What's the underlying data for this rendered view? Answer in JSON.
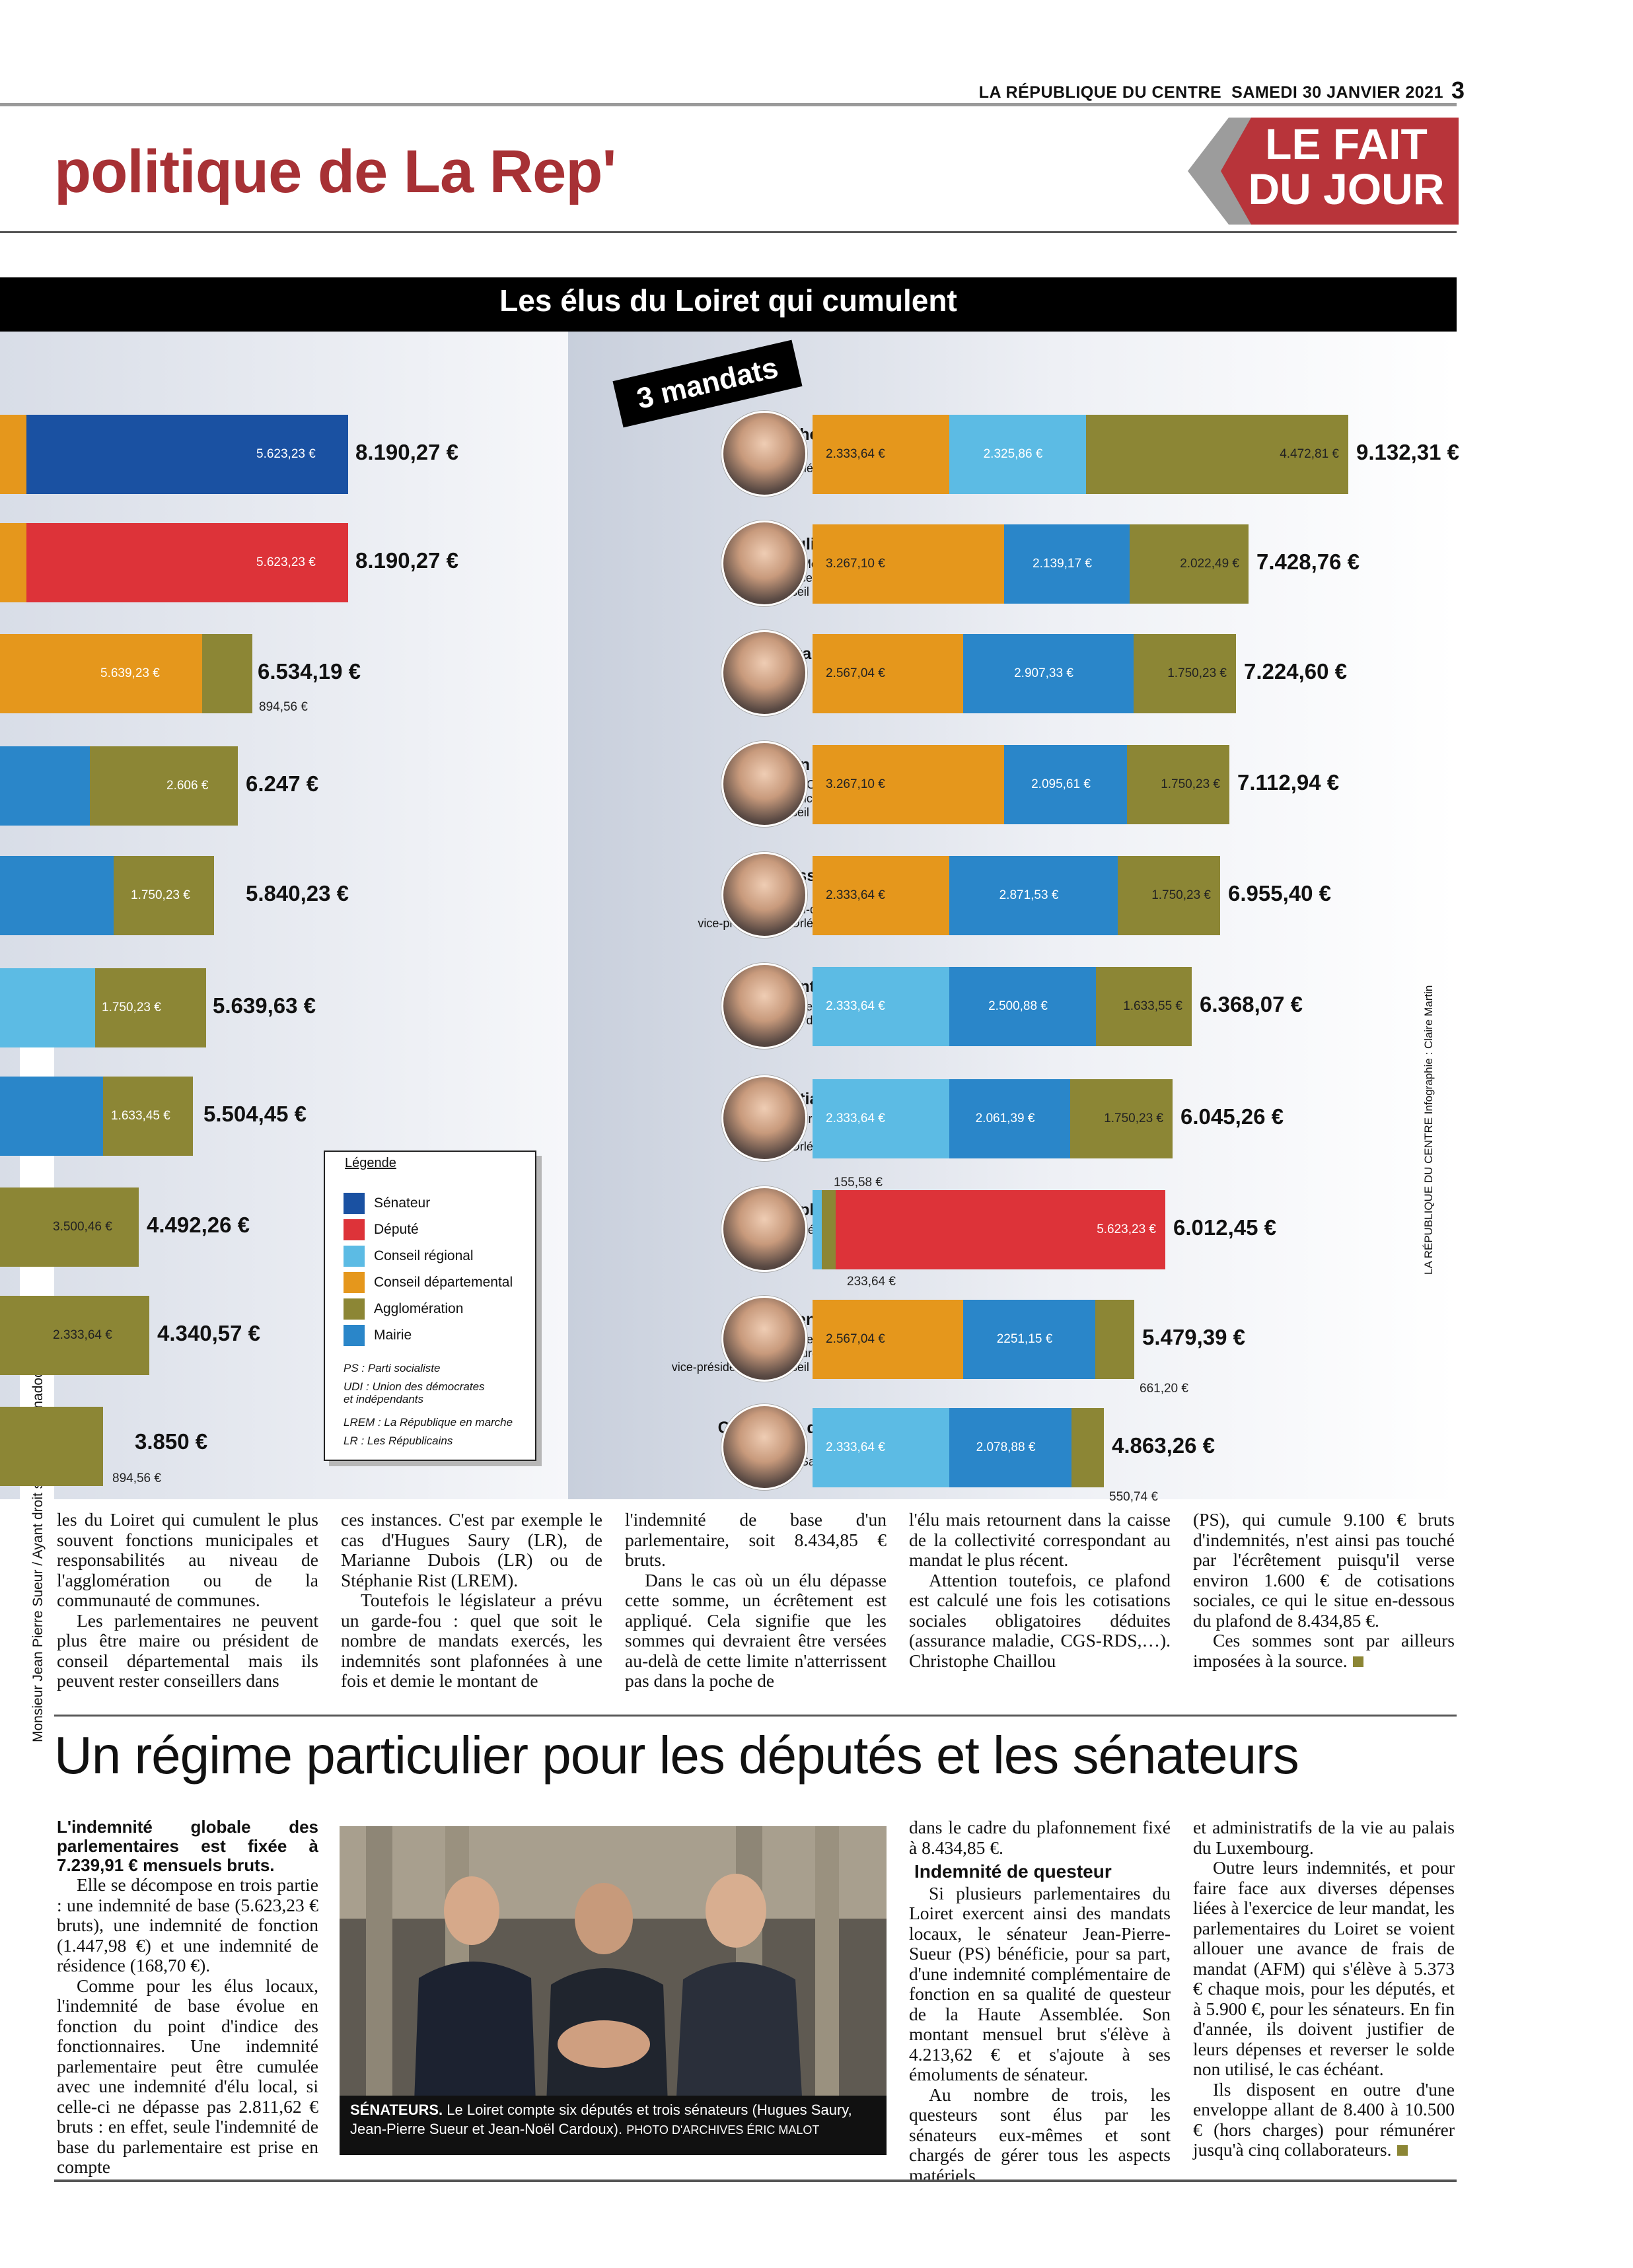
{
  "header": {
    "publication": "LA RÉPUBLIQUE DU CENTRE",
    "date": "SAMEDI 30 JANVIER 2021",
    "page_number": "3",
    "section_title": "politique de La Rep'",
    "fait_du_jour": "LE FAIT\nDU JOUR"
  },
  "infographic": {
    "title": "Les élus du Loiret qui cumulent",
    "badge": "3 mandats",
    "left_rows": [
      {
        "seg_label": "5.623,23 €",
        "total": "8.190,27 €",
        "extra": ""
      },
      {
        "seg_label": "5.623,23 €",
        "total": "8.190,27 €",
        "extra": ""
      },
      {
        "seg_label": "5.639,23 €",
        "total": "6.534,19 €",
        "extra": "894,56 €"
      },
      {
        "seg_label": "2.606 €",
        "total": "6.247 €",
        "extra": ""
      },
      {
        "seg_label": "1.750,23 €",
        "total": "5.840,23 €",
        "extra": ""
      },
      {
        "seg_label": "1.750,23 €",
        "total": "5.639,63 €",
        "extra": ""
      },
      {
        "seg_label": "1.633,45 €",
        "total": "5.504,45 €",
        "extra": ""
      },
      {
        "seg_label": "3.500,46 €",
        "total": "4.492,26 €",
        "extra": ""
      },
      {
        "seg_label": "2.333,64 €",
        "total": "4.340,57 €",
        "extra": ""
      },
      {
        "seg_label": "",
        "total": "3.850 €",
        "extra": "894,56 €"
      }
    ],
    "right_rows": [
      {
        "name": "Christophe Chaillou",
        "role": "Président\nd'Orléans métropole\n(PS)",
        "segments": [
          {
            "cat": "cd",
            "label": "2.333,64 €"
          },
          {
            "cat": "reg",
            "label": "2.325,86 €"
          },
          {
            "cat": "agg",
            "label": "4.472,81 €"
          }
        ],
        "total": "9.132,31 €",
        "extra": ""
      },
      {
        "name": "Pauline Martin",
        "role": "Maire de Meung-sur-Loire\n(Droite), vice-présidente du\nconseil départemental",
        "segments": [
          {
            "cat": "cd",
            "label": "3.267,10 €"
          },
          {
            "cat": "mai",
            "label": "2.139,17 €"
          },
          {
            "cat": "agg",
            "label": "2.022,49 €"
          }
        ],
        "total": "7.428,76 €",
        "extra": ""
      },
      {
        "name": "Gérard Dupaty",
        "role": "Maire d'Amilly\n(Droite)",
        "segments": [
          {
            "cat": "cd",
            "label": "2.567,04 €"
          },
          {
            "cat": "mai",
            "label": "2.907,33 €"
          },
          {
            "cat": "agg",
            "label": "1.750,23 €"
          }
        ],
        "total": "7.224,60 €",
        "extra": ""
      },
      {
        "name": "Alain Touchard",
        "role": "Maire d'Ormes (Droite),\nvice-président du\nconseil départemental",
        "segments": [
          {
            "cat": "cd",
            "label": "3.267,10 €"
          },
          {
            "cat": "mai",
            "label": "2.095,61 €"
          },
          {
            "cat": "agg",
            "label": "1.750,23 €"
          }
        ],
        "total": "7.112,94 €",
        "extra": ""
      },
      {
        "name": "Vanessa Slimani",
        "role": "Maire de\nSaint-Jean-de-Braye (PS),\nvice-présidente d'Orléans Métropole",
        "segments": [
          {
            "cat": "cd",
            "label": "2.333,64 €"
          },
          {
            "cat": "mai",
            "label": "2.871,53 €"
          },
          {
            "cat": "agg",
            "label": "1.750,23 €"
          }
        ],
        "total": "6.955,40 €",
        "extra": ""
      },
      {
        "name": "Florent Montillot",
        "role": "Premier maire-adjoint\nd'Orléans (UDI)",
        "segments": [
          {
            "cat": "reg",
            "label": "2.333,64 €"
          },
          {
            "cat": "mai",
            "label": "2.500,88 €"
          },
          {
            "cat": "agg",
            "label": "1.633,55 €"
          }
        ],
        "total": "6.368,07 €",
        "extra": ""
      },
      {
        "name": "Christian Dumas",
        "role": "Maire d'Ingré (PS),\nvice-président\nd'Orléans Métropole",
        "segments": [
          {
            "cat": "reg",
            "label": "2.333,64 €"
          },
          {
            "cat": "mai",
            "label": "2.061,39 €"
          },
          {
            "cat": "agg",
            "label": "1.750,23 €"
          }
        ],
        "total": "6.045,26 €",
        "extra": ""
      },
      {
        "name": "Stéphanie Rist",
        "role": "Députée (LREM)",
        "segments": [
          {
            "cat": "reg",
            "label": ""
          },
          {
            "cat": "agg",
            "label": ""
          },
          {
            "cat": "dep",
            "label": "5.623,23 €"
          }
        ],
        "total": "6.012,45 €",
        "extra": "155,58 €",
        "extra2": "233,64 €"
      },
      {
        "name": "Florence Galzin",
        "role": "Maire de Châteauneuf-\nsur-Loire (Droite),\nvice-présidente du conseil départemental",
        "segments": [
          {
            "cat": "cd",
            "label": "2.567,04 €"
          },
          {
            "cat": "mai",
            "label": "2251,15 €"
          },
          {
            "cat": "agg",
            "label": ""
          }
        ],
        "total": "5.479,39 €",
        "extra": "661,20 €"
      },
      {
        "name": "Constance de Pélichy",
        "role": "Maire de\nLa Ferté-Saint-Aubin (LR)",
        "segments": [
          {
            "cat": "reg",
            "label": "2.333,64 €"
          },
          {
            "cat": "mai",
            "label": "2.078,88 €"
          },
          {
            "cat": "agg",
            "label": ""
          }
        ],
        "total": "4.863,26 €",
        "extra": "550,74 €"
      }
    ],
    "legend": {
      "title": "Légende",
      "items": [
        {
          "label": "Sénateur",
          "color": "#1a51a2"
        },
        {
          "label": "Député",
          "color": "#dd3339"
        },
        {
          "label": "Conseil régional",
          "color": "#5cbbe4"
        },
        {
          "label": "Conseil départemental",
          "color": "#e5971c"
        },
        {
          "label": "Agglomération",
          "color": "#8c8635"
        },
        {
          "label": "Mairie",
          "color": "#2a86c9"
        }
      ],
      "notes": [
        "PS : Parti socialiste",
        "UDI : Union des démocrates\n        et indépendants",
        "LREM : La République en marche",
        "LR : Les Républicains"
      ]
    },
    "credit_vertical": "LA RÉPUBLIQUE DU CENTRE  Infographie : Claire Martin",
    "colors": {
      "sen": "#1a51a2",
      "dep": "#dd3339",
      "reg": "#5cbbe4",
      "cd": "#e5971c",
      "agg": "#8c8635",
      "mai": "#2a86c9"
    }
  },
  "side_credit": "Monsieur Jean Pierre Sueur / Ayant droit sueur.jp@wanadoo.fr",
  "article1": {
    "col1": [
      "les du Loiret qui cumulent le plus souvent fonctions municipales et responsabilités au niveau de l'agglomération ou de la communauté de communes.",
      "Les parlementaires ne peuvent plus être maire ou président de conseil départemental mais ils peuvent rester conseillers dans"
    ],
    "col2": [
      "ces instances. C'est par exemple le cas d'Hugues Saury (LR), de Marianne Dubois (LR) ou de Stéphanie Rist (LREM).",
      "Toutefois le législateur a prévu un garde-fou : quel que soit le nombre de mandats exercés, les indemnités sont plafonnées à une fois et demie le montant de"
    ],
    "col3": [
      "l'indemnité de base d'un parlementaire, soit 8.434,85 € bruts.",
      "Dans le cas où un élu dépasse cette somme, un écrêtement est appliqué. Cela signifie que les sommes qui devraient être versées au-delà de cette limite n'atterrissent pas dans la poche de"
    ],
    "col4": [
      "l'élu mais retournent dans la caisse de la collectivité correspondant au mandat le plus récent.",
      "Attention toutefois, ce plafond est calculé une fois les cotisations sociales obligatoires déduites (assurance maladie, CGS-RDS,…). Christophe Chaillou"
    ],
    "col5": [
      "(PS), qui cumule 9.100 € bruts d'indemnités, n'est ainsi pas touché par l'écrêtement puisqu'il verse environ 1.600 € de cotisations sociales, ce qui le situe en-dessous du plafond de 8.434,85 €.",
      "Ces sommes sont par ailleurs imposées à la source."
    ]
  },
  "article2": {
    "headline": "Un régime particulier pour les députés et les sénateurs",
    "lead": "L'indemnité globale des parlementaires est fixée à 7.239,91 € mensuels bruts.",
    "col1": [
      "Elle se décompose en trois partie : une indemnité de base (5.623,23 € bruts), une indemnité de fonction (1.447,98 €) et une indemnité de résidence (168,70 €).",
      "Comme pour les élus locaux, l'indemnité de base évolue en fonction du point d'indice des fonctionnaires. Une indemnité parlementaire peut être cumulée avec une indemnité d'élu local, si celle-ci ne dépasse pas 2.811,62 € bruts : en effet, seule l'indemnité de base du parlementaire est prise en compte"
    ],
    "photo_caption_bold": "SÉNATEURS.",
    "photo_caption": " Le Loiret compte six députés et trois sénateurs (Hugues Saury, Jean-Pierre Sueur et Jean-Noël Cardoux). ",
    "photo_credit": "PHOTO D'ARCHIVES ÉRIC MALOT",
    "col3_top": "dans le cadre du plafonnement fixé à 8.434,85 €.",
    "subhead": "Indemnité de questeur",
    "col3": [
      "Si plusieurs parlementaires du Loiret exercent ainsi des mandats locaux, le sénateur Jean-Pierre-Sueur (PS) bénéficie, pour sa part, d'une indemnité complémentaire de fonction en sa qualité de questeur de la Haute Assemblée. Son montant mensuel brut s'élève à 4.213,62 € et s'ajoute à ses émoluments de sénateur.",
      "Au nombre de trois, les questeurs sont élus par les sénateurs eux-mêmes et sont chargés de gérer tous les aspects matériels"
    ],
    "col4": [
      "et administratifs de la vie au palais du Luxembourg.",
      "Outre leurs indemnités, et pour faire face aux diverses dépenses liées à l'exercice de leur mandat, les parlementaires du Loiret se voient allouer une avance de frais de mandat (AFM) qui s'élève à 5.373 € chaque mois, pour les députés, et à 5.900 €, pour les sénateurs. En fin d'année, ils doivent justifier de leurs dépenses et reverser le solde non utilisé, le cas échéant.",
      "Ils disposent en outre d'une enveloppe allant de 8.400 à 10.500 € (hors charges) pour rémunérer jusqu'à cinq collaborateurs."
    ]
  }
}
